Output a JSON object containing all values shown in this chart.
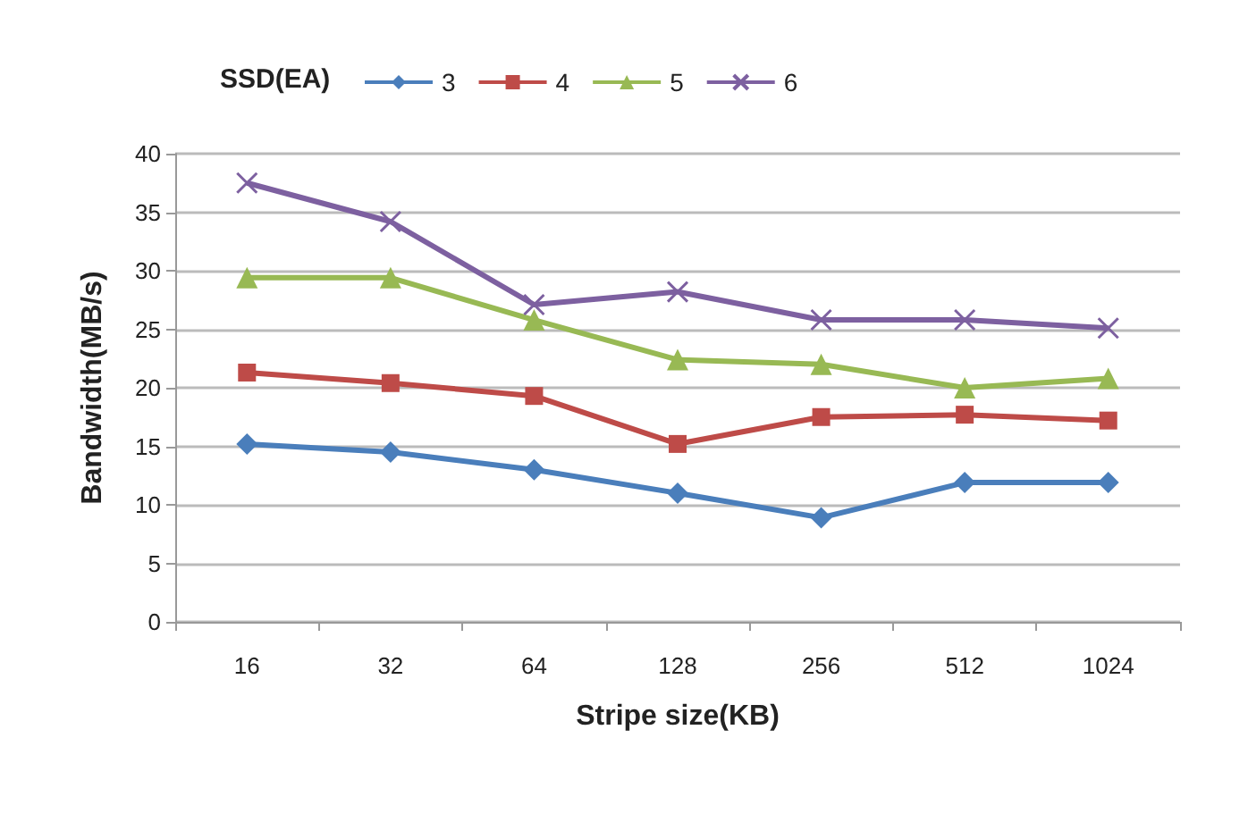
{
  "chart_data": {
    "type": "line",
    "xlabel": "Stripe size(KB)",
    "ylabel": "Bandwidth(MB/s)",
    "legend_title": "SSD(EA)",
    "legend": "top",
    "grid": "y",
    "categories": [
      "16",
      "32",
      "64",
      "128",
      "256",
      "512",
      "1024"
    ],
    "ylim": [
      0,
      40
    ],
    "yticks": [
      0,
      5,
      10,
      15,
      20,
      25,
      30,
      35,
      40
    ],
    "series": [
      {
        "name": "3",
        "color": "#4a7ebb",
        "marker": "diamond",
        "values": [
          15.2,
          14.5,
          13,
          11,
          8.9,
          11.9,
          11.9
        ]
      },
      {
        "name": "4",
        "color": "#be4b48",
        "marker": "square",
        "values": [
          21.3,
          20.4,
          19.3,
          15.2,
          17.5,
          17.7,
          17.2
        ]
      },
      {
        "name": "5",
        "color": "#98b954",
        "marker": "triangle",
        "values": [
          29.4,
          29.4,
          25.8,
          22.4,
          22,
          20,
          20.8
        ]
      },
      {
        "name": "6",
        "color": "#7d60a0",
        "marker": "cross",
        "values": [
          37.5,
          34.2,
          27.1,
          28.2,
          25.8,
          25.8,
          25.1
        ]
      }
    ]
  }
}
